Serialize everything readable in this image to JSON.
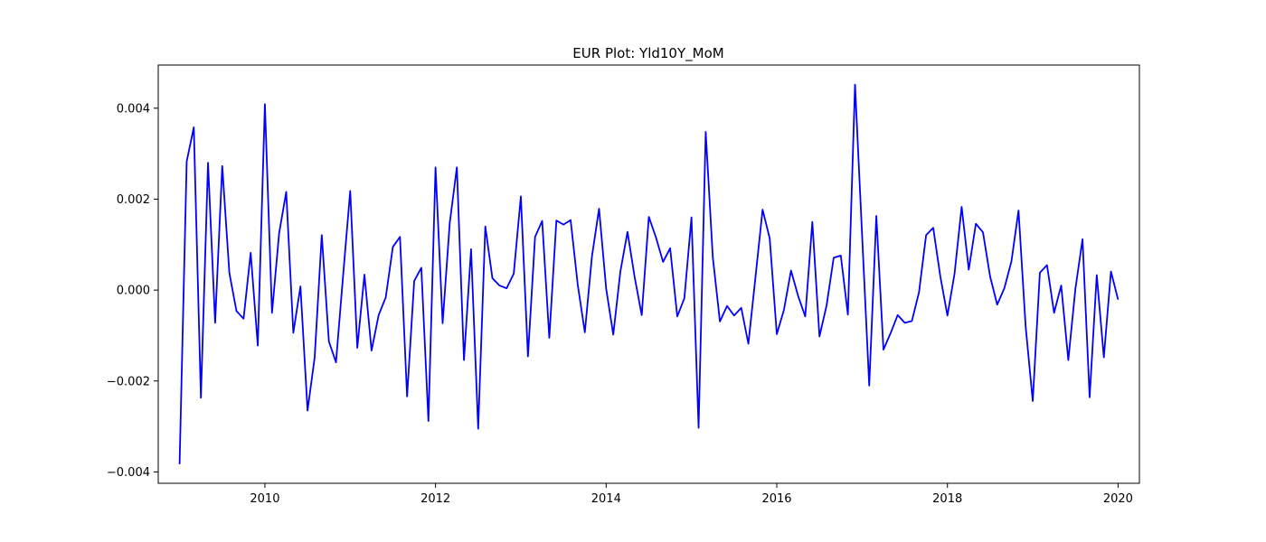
{
  "chart_data": {
    "type": "line",
    "title": "EUR Plot: Yld10Y_MoM",
    "xlabel": "",
    "ylabel": "",
    "xlim": [
      2008.75,
      2020.25
    ],
    "ylim": [
      -0.00425,
      0.00495
    ],
    "x_ticks": [
      2010,
      2012,
      2014,
      2016,
      2018,
      2020
    ],
    "y_ticks": [
      -0.004,
      -0.002,
      0.0,
      0.002,
      0.004
    ],
    "x_tick_labels": [
      "2010",
      "2012",
      "2014",
      "2016",
      "2018",
      "2020"
    ],
    "y_tick_labels": [
      "−0.004",
      "−0.002",
      "0.000",
      "0.002",
      "0.004"
    ],
    "grid": false,
    "legend": "none",
    "series": [
      {
        "color": "#0000ff",
        "start_year": 2009,
        "start_month": 1,
        "frequency": "monthly",
        "values": [
          -0.00383,
          0.00283,
          0.00358,
          -0.00237,
          0.0028,
          -0.00072,
          0.00273,
          0.00038,
          -0.00046,
          -0.00063,
          0.00082,
          -0.00122,
          0.00409,
          -0.0005,
          0.00125,
          0.00216,
          -0.00094,
          8e-05,
          -0.00265,
          -0.00148,
          0.00121,
          -0.00113,
          -0.00159,
          0.00032,
          0.00218,
          -0.00127,
          0.00034,
          -0.00133,
          -0.00055,
          -0.00016,
          0.00095,
          0.00117,
          -0.00234,
          0.0002,
          0.00049,
          -0.00288,
          0.0027,
          -0.00073,
          0.00148,
          0.0027,
          -0.00154,
          0.0009,
          -0.00305,
          0.0014,
          0.00026,
          0.0001,
          4e-05,
          0.00036,
          0.00206,
          -0.00146,
          0.00117,
          0.00152,
          -0.00105,
          0.00153,
          0.00144,
          0.00154,
          0.00012,
          -0.00093,
          0.00074,
          0.00179,
          3e-05,
          -0.00098,
          0.00041,
          0.00128,
          0.00029,
          -0.00055,
          0.00161,
          0.00116,
          0.00062,
          0.00092,
          -0.00058,
          -0.00018,
          0.0016,
          -0.00303,
          0.00348,
          0.00072,
          -0.00069,
          -0.00035,
          -0.00056,
          -0.00039,
          -0.00118,
          0.00028,
          0.00177,
          0.00114,
          -0.00097,
          -0.00044,
          0.00043,
          -0.00013,
          -0.00058,
          0.0015,
          -0.00102,
          -0.00034,
          0.00071,
          0.00076,
          -0.00054,
          0.00452,
          0.0012,
          -0.0021,
          0.00163,
          -0.00131,
          -0.00095,
          -0.00055,
          -0.00072,
          -0.00068,
          -5e-05,
          0.00121,
          0.00137,
          0.0003,
          -0.00056,
          0.00036,
          0.00183,
          0.00045,
          0.00146,
          0.00127,
          0.0003,
          -0.00032,
          4e-05,
          0.00063,
          0.00175,
          -0.0008,
          -0.00244,
          0.00038,
          0.00055,
          -0.0005,
          0.0001,
          -0.00154,
          3e-05,
          0.00112,
          -0.00236,
          0.00033,
          -0.00148,
          0.00041,
          -0.00021
        ]
      }
    ]
  }
}
